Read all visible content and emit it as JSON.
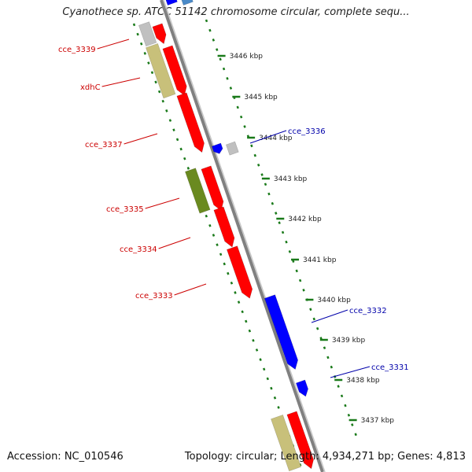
{
  "title": "Cyanothece sp. ATCC 51142 chromosome circular, complete sequ...",
  "footer": {
    "accession": "Accession: NC_010546",
    "summary": "Topology: circular; Length: 4,934,271 bp; Genes: 4,813"
  },
  "colors": {
    "gene_red": "#ff0000",
    "gene_blue": "#0000ff",
    "gene_grey": "#c0c0c0",
    "gene_khaki": "#c8c07a",
    "gene_olive": "#6a8a20",
    "gene_steel": "#4a8ac8",
    "backbone": "#808080",
    "tick_green": "#1a7a1a",
    "label_red": "#cc0000",
    "label_blue": "#0000aa"
  },
  "scale_labels": [
    "3446 kbp",
    "3445 kbp",
    "3444 kbp",
    "3443 kbp",
    "3442 kbp",
    "3441 kbp",
    "3440 kbp",
    "3439 kbp",
    "3438 kbp",
    "3437 kbp"
  ],
  "gene_labels_left": [
    "cce_3339",
    "xdhC",
    "cce_3337",
    "cce_3335",
    "cce_3334",
    "cce_3333"
  ],
  "gene_labels_right": [
    "cce_3336",
    "cce_3332",
    "cce_3331"
  ]
}
